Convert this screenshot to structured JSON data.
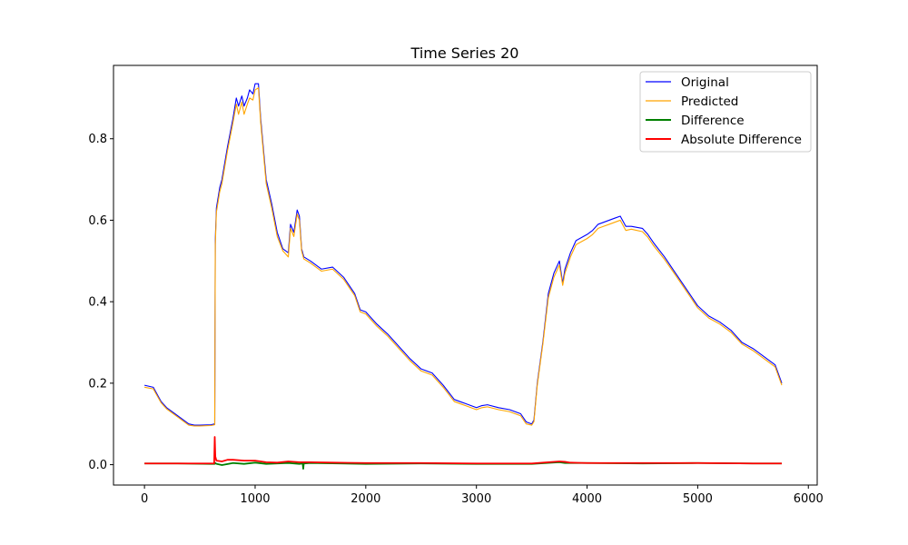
{
  "chart_data": {
    "type": "line",
    "title": "Time Series 20",
    "xlabel": "",
    "ylabel": "",
    "xlim": [
      -280,
      6080
    ],
    "ylim": [
      -0.05,
      0.98
    ],
    "xticks": [
      0,
      1000,
      2000,
      3000,
      4000,
      5000,
      6000
    ],
    "xtick_labels": [
      "0",
      "1000",
      "2000",
      "3000",
      "4000",
      "5000",
      "6000"
    ],
    "yticks": [
      0.0,
      0.2,
      0.4,
      0.6,
      0.8
    ],
    "ytick_labels": [
      "0.0",
      "0.2",
      "0.4",
      "0.6",
      "0.8"
    ],
    "grid": false,
    "legend_position": "top-right",
    "series": [
      {
        "name": "Original",
        "color": "#0000ff",
        "x": [
          0,
          80,
          100,
          150,
          200,
          300,
          400,
          450,
          500,
          600,
          635,
          640,
          650,
          680,
          700,
          750,
          800,
          830,
          850,
          880,
          900,
          930,
          950,
          980,
          1000,
          1030,
          1050,
          1080,
          1100,
          1150,
          1200,
          1250,
          1300,
          1320,
          1350,
          1380,
          1400,
          1420,
          1440,
          1500,
          1600,
          1700,
          1800,
          1900,
          1950,
          2000,
          2100,
          2200,
          2300,
          2400,
          2500,
          2600,
          2700,
          2800,
          2900,
          3000,
          3050,
          3100,
          3200,
          3300,
          3400,
          3450,
          3500,
          3520,
          3550,
          3600,
          3650,
          3700,
          3750,
          3780,
          3800,
          3850,
          3900,
          4000,
          4050,
          4100,
          4150,
          4200,
          4250,
          4300,
          4350,
          4400,
          4500,
          4550,
          4600,
          4700,
          4800,
          4900,
          5000,
          5100,
          5200,
          5300,
          5400,
          5500,
          5600,
          5700,
          5760
        ],
        "y": [
          0.195,
          0.19,
          0.18,
          0.155,
          0.14,
          0.12,
          0.1,
          0.097,
          0.097,
          0.098,
          0.1,
          0.55,
          0.63,
          0.68,
          0.7,
          0.78,
          0.85,
          0.9,
          0.88,
          0.905,
          0.88,
          0.9,
          0.92,
          0.91,
          0.935,
          0.935,
          0.85,
          0.76,
          0.7,
          0.64,
          0.57,
          0.53,
          0.52,
          0.59,
          0.57,
          0.625,
          0.61,
          0.53,
          0.51,
          0.5,
          0.48,
          0.485,
          0.46,
          0.42,
          0.38,
          0.375,
          0.345,
          0.32,
          0.29,
          0.26,
          0.235,
          0.225,
          0.195,
          0.16,
          0.15,
          0.14,
          0.145,
          0.147,
          0.14,
          0.135,
          0.125,
          0.105,
          0.1,
          0.11,
          0.2,
          0.3,
          0.42,
          0.47,
          0.5,
          0.445,
          0.48,
          0.52,
          0.55,
          0.565,
          0.575,
          0.59,
          0.595,
          0.6,
          0.605,
          0.61,
          0.585,
          0.585,
          0.58,
          0.565,
          0.545,
          0.51,
          0.47,
          0.43,
          0.39,
          0.365,
          0.35,
          0.33,
          0.3,
          0.285,
          0.265,
          0.245,
          0.2
        ]
      },
      {
        "name": "Predicted",
        "color": "#ffa500",
        "x": [
          0,
          80,
          100,
          150,
          200,
          300,
          400,
          450,
          500,
          600,
          635,
          640,
          650,
          680,
          700,
          750,
          800,
          830,
          850,
          880,
          900,
          930,
          950,
          980,
          1000,
          1030,
          1050,
          1080,
          1100,
          1150,
          1200,
          1250,
          1300,
          1320,
          1350,
          1380,
          1400,
          1420,
          1440,
          1500,
          1600,
          1700,
          1800,
          1900,
          1950,
          2000,
          2100,
          2200,
          2300,
          2400,
          2500,
          2600,
          2700,
          2800,
          2900,
          3000,
          3050,
          3100,
          3200,
          3300,
          3400,
          3450,
          3500,
          3520,
          3550,
          3600,
          3650,
          3700,
          3750,
          3780,
          3800,
          3850,
          3900,
          4000,
          4050,
          4100,
          4150,
          4200,
          4250,
          4300,
          4350,
          4400,
          4500,
          4550,
          4600,
          4700,
          4800,
          4900,
          5000,
          5100,
          5200,
          5300,
          5400,
          5500,
          5600,
          5700,
          5760
        ],
        "y": [
          0.19,
          0.186,
          0.176,
          0.152,
          0.137,
          0.117,
          0.097,
          0.095,
          0.095,
          0.096,
          0.098,
          0.54,
          0.62,
          0.67,
          0.69,
          0.77,
          0.84,
          0.885,
          0.86,
          0.89,
          0.86,
          0.885,
          0.9,
          0.895,
          0.92,
          0.925,
          0.84,
          0.75,
          0.69,
          0.63,
          0.56,
          0.525,
          0.51,
          0.58,
          0.56,
          0.615,
          0.6,
          0.525,
          0.505,
          0.495,
          0.475,
          0.48,
          0.455,
          0.415,
          0.375,
          0.37,
          0.34,
          0.315,
          0.285,
          0.255,
          0.23,
          0.22,
          0.19,
          0.155,
          0.145,
          0.135,
          0.14,
          0.142,
          0.135,
          0.13,
          0.12,
          0.1,
          0.097,
          0.106,
          0.195,
          0.295,
          0.41,
          0.46,
          0.49,
          0.44,
          0.47,
          0.51,
          0.54,
          0.555,
          0.565,
          0.58,
          0.585,
          0.59,
          0.595,
          0.6,
          0.575,
          0.578,
          0.572,
          0.558,
          0.538,
          0.504,
          0.465,
          0.425,
          0.385,
          0.36,
          0.345,
          0.325,
          0.296,
          0.28,
          0.26,
          0.24,
          0.195
        ]
      },
      {
        "name": "Difference",
        "color": "#008000",
        "x": [
          0,
          300,
          600,
          635,
          640,
          650,
          700,
          800,
          900,
          1000,
          1100,
          1300,
          1400,
          1430,
          1435,
          1440,
          1445,
          1500,
          2000,
          2500,
          3000,
          3500,
          3750,
          3800,
          4000,
          4500,
          5000,
          5500,
          5760
        ],
        "y": [
          0.003,
          0.003,
          0.002,
          0.002,
          0.004,
          0.002,
          -0.001,
          0.004,
          0.002,
          0.005,
          0.002,
          0.004,
          0.002,
          0.003,
          -0.01,
          0.004,
          0.003,
          0.004,
          0.002,
          0.003,
          0.002,
          0.002,
          0.006,
          0.004,
          0.004,
          0.003,
          0.004,
          0.003,
          0.003
        ]
      },
      {
        "name": "Absolute Difference",
        "color": "#ff0000",
        "x": [
          0,
          300,
          600,
          630,
          635,
          640,
          650,
          700,
          750,
          800,
          900,
          1000,
          1100,
          1200,
          1300,
          1400,
          1500,
          1700,
          2000,
          2500,
          3000,
          3500,
          3750,
          3800,
          3850,
          4000,
          4500,
          5000,
          5500,
          5760
        ],
        "y": [
          0.003,
          0.003,
          0.003,
          0.003,
          0.068,
          0.02,
          0.01,
          0.008,
          0.012,
          0.012,
          0.01,
          0.01,
          0.006,
          0.005,
          0.008,
          0.006,
          0.006,
          0.005,
          0.004,
          0.004,
          0.003,
          0.003,
          0.008,
          0.007,
          0.005,
          0.004,
          0.004,
          0.004,
          0.003,
          0.003
        ]
      }
    ]
  }
}
